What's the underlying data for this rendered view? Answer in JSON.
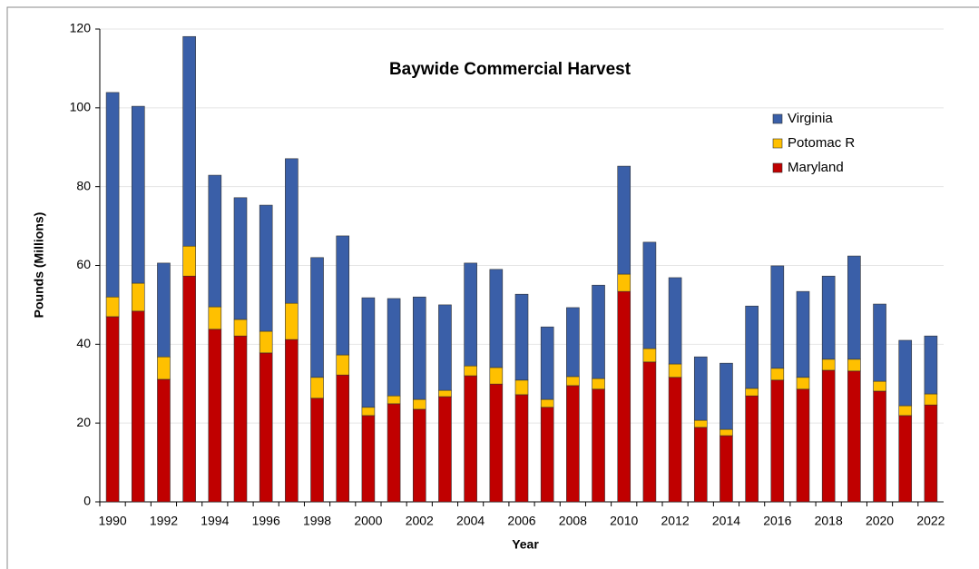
{
  "chart_data": {
    "type": "stacked_bar",
    "title": "Baywide Commercial Harvest",
    "xlabel": "Year",
    "ylabel": "Pounds (Millions)",
    "categories": [
      "1990",
      null,
      "1992",
      null,
      "1994",
      null,
      "1996",
      null,
      "1998",
      null,
      "2000",
      null,
      "2002",
      null,
      "2004",
      null,
      "2006",
      null,
      "2008",
      null,
      "2010",
      null,
      "2012",
      null,
      "2014",
      null,
      "2016",
      null,
      "2018",
      null,
      "2020",
      null,
      "2022"
    ],
    "series": [
      {
        "name": "Maryland",
        "color": "#c00000",
        "values": [
          47.0,
          48.4,
          31.1,
          57.3,
          43.8,
          42.1,
          37.8,
          41.2,
          26.3,
          32.2,
          21.9,
          24.9,
          23.5,
          26.7,
          32.0,
          29.9,
          27.2,
          24.0,
          29.5,
          28.6,
          53.4,
          35.5,
          31.6,
          18.9,
          16.8,
          26.9,
          30.9,
          28.6,
          33.4,
          33.2,
          28.1,
          21.9,
          24.6
        ]
      },
      {
        "name": "Potomac R",
        "color": "#ffc000",
        "values": [
          5.0,
          7.1,
          5.7,
          7.6,
          5.7,
          4.2,
          5.5,
          9.2,
          5.3,
          5.1,
          2.1,
          2.0,
          2.5,
          1.6,
          2.5,
          4.2,
          3.7,
          2.0,
          2.3,
          2.7,
          4.4,
          3.4,
          3.4,
          1.8,
          1.6,
          1.9,
          3.0,
          3.0,
          2.8,
          3.0,
          2.5,
          2.5,
          2.8
        ]
      },
      {
        "name": "Virginia",
        "color": "#3a5fa8",
        "values": [
          51.9,
          44.9,
          23.8,
          53.2,
          33.4,
          30.9,
          32.0,
          36.7,
          30.4,
          30.2,
          27.8,
          24.7,
          26.0,
          21.7,
          26.1,
          24.9,
          21.8,
          18.4,
          17.5,
          23.7,
          27.4,
          27.0,
          21.9,
          16.1,
          16.8,
          20.9,
          26.0,
          21.8,
          21.1,
          26.2,
          19.6,
          16.6,
          14.7
        ]
      }
    ],
    "ylim": [
      0,
      120
    ],
    "yticks": [
      0,
      20,
      40,
      60,
      80,
      100,
      120
    ],
    "grid": true,
    "legend": "upper right"
  }
}
